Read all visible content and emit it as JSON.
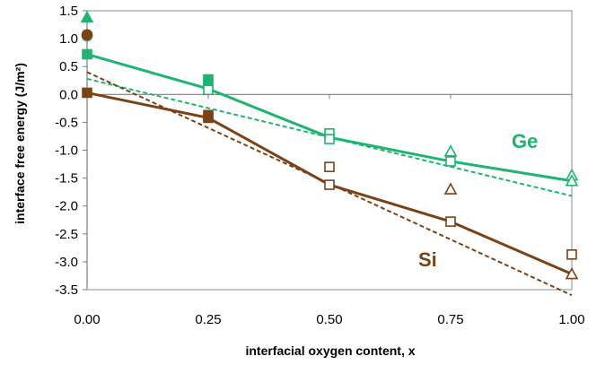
{
  "chart_data": {
    "type": "scatter",
    "title": "",
    "xlabel": "interfacial oxygen content, x",
    "ylabel": "interface free energy (J/m²)",
    "xlim": [
      0,
      1
    ],
    "ylim": [
      -3.5,
      1.5
    ],
    "x_ticks": [
      "0.00",
      "0.25",
      "0.50",
      "0.75",
      "1.00"
    ],
    "y_ticks": [
      "1.5",
      "1.0",
      "0.5",
      "0.0",
      "-0.5",
      "-1.0",
      "-1.5",
      "-2.0",
      "-2.5",
      "-3.0",
      "-3.5"
    ],
    "grid": false,
    "colors": {
      "Ge": "#1db56f",
      "Si": "#7a4316"
    },
    "series": [
      {
        "name": "Ge",
        "color": "#1db56f",
        "solid_line": {
          "x": [
            0,
            0.25,
            0.5,
            0.75,
            1.0
          ],
          "y": [
            0.72,
            0.1,
            -0.77,
            -1.2,
            -1.55
          ]
        },
        "dashed_line": {
          "x": [
            0,
            1.0
          ],
          "y": [
            0.28,
            -1.82
          ]
        },
        "points": [
          {
            "x": 0.0,
            "y": 1.38,
            "marker": "triangle",
            "filled": true
          },
          {
            "x": 0.0,
            "y": 1.05,
            "marker": "circle",
            "filled": true
          },
          {
            "x": 0.0,
            "y": 0.72,
            "marker": "square",
            "filled": true
          },
          {
            "x": 0.25,
            "y": 0.27,
            "marker": "square",
            "filled": true
          },
          {
            "x": 0.25,
            "y": 0.18,
            "marker": "square",
            "filled": true
          },
          {
            "x": 0.25,
            "y": 0.08,
            "marker": "square",
            "filled": false
          },
          {
            "x": 0.5,
            "y": -0.7,
            "marker": "square",
            "filled": false
          },
          {
            "x": 0.5,
            "y": -0.8,
            "marker": "square",
            "filled": false
          },
          {
            "x": 0.75,
            "y": -1.02,
            "marker": "triangle",
            "filled": false
          },
          {
            "x": 0.75,
            "y": -1.2,
            "marker": "square",
            "filled": false
          },
          {
            "x": 1.0,
            "y": -1.45,
            "marker": "triangle",
            "filled": false
          },
          {
            "x": 1.0,
            "y": -1.55,
            "marker": "triangle",
            "filled": false
          }
        ]
      },
      {
        "name": "Si",
        "color": "#7a4316",
        "solid_line": {
          "x": [
            0,
            0.25,
            0.5,
            0.75,
            1.0
          ],
          "y": [
            0.03,
            -0.42,
            -1.62,
            -2.28,
            -3.22
          ]
        },
        "dashed_line": {
          "x": [
            0,
            1.0
          ],
          "y": [
            0.4,
            -3.6
          ]
        },
        "points": [
          {
            "x": 0.0,
            "y": 1.07,
            "marker": "circle",
            "filled": true
          },
          {
            "x": 0.0,
            "y": 0.03,
            "marker": "square",
            "filled": true
          },
          {
            "x": 0.25,
            "y": -0.37,
            "marker": "square",
            "filled": true
          },
          {
            "x": 0.25,
            "y": -0.42,
            "marker": "square",
            "filled": true
          },
          {
            "x": 0.5,
            "y": -1.3,
            "marker": "square",
            "filled": false
          },
          {
            "x": 0.5,
            "y": -1.62,
            "marker": "square",
            "filled": false
          },
          {
            "x": 0.75,
            "y": -1.7,
            "marker": "triangle",
            "filled": false
          },
          {
            "x": 0.75,
            "y": -2.28,
            "marker": "square",
            "filled": false
          },
          {
            "x": 1.0,
            "y": -2.87,
            "marker": "square",
            "filled": false
          },
          {
            "x": 1.0,
            "y": -3.22,
            "marker": "triangle",
            "filled": false
          }
        ]
      }
    ]
  }
}
